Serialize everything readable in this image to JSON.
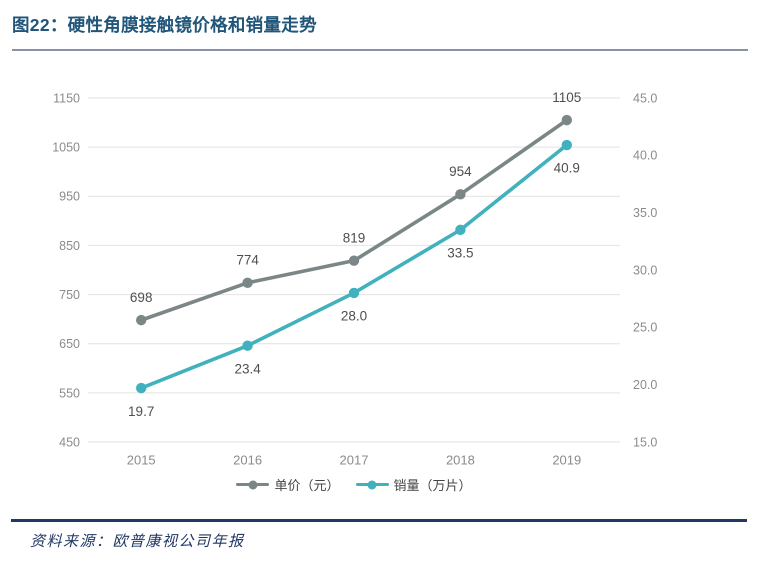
{
  "header": {
    "title": "图22：硬性角膜接触镜价格和销量走势"
  },
  "footer": {
    "source": "资料来源：欧普康视公司年报"
  },
  "theme": {
    "title_color": "#21567A",
    "title_rule_color": "#8494A6",
    "footer_rule_color": "#1F3864",
    "source_color": "#1F3864",
    "gridline_color": "#E2E2E2",
    "axis_label_color": "#8B8B8B",
    "data_label_color": "#4F4F4F",
    "legend_text_color": "#454545",
    "background_color": "#FFFFFF"
  },
  "chart_data": {
    "type": "line",
    "title": "硬性角膜接触镜价格和销量走势",
    "categories": [
      "2015",
      "2016",
      "2017",
      "2018",
      "2019"
    ],
    "series": [
      {
        "name": "单价（元）",
        "axis": "left",
        "color": "#7B8687",
        "values": [
          698,
          774,
          819,
          954,
          1105
        ],
        "labels": [
          "698",
          "774",
          "819",
          "954",
          "1105"
        ],
        "label_position": "above"
      },
      {
        "name": "销量（万片）",
        "axis": "right",
        "color": "#40B1BD",
        "values": [
          19.7,
          23.4,
          28.0,
          33.5,
          40.9
        ],
        "labels": [
          "19.7",
          "23.4",
          "28.0",
          "33.5",
          "40.9"
        ],
        "label_position": "below"
      }
    ],
    "left_axis": {
      "min": 450,
      "max": 1150,
      "step": 100,
      "ticks": [
        "450",
        "550",
        "650",
        "750",
        "850",
        "950",
        "1050",
        "1150"
      ]
    },
    "right_axis": {
      "min": 15,
      "max": 45,
      "step": 5,
      "ticks": [
        "15.0",
        "20.0",
        "25.0",
        "30.0",
        "35.0",
        "40.0",
        "45.0"
      ]
    },
    "grid": "horizontal-only",
    "legend_position": "bottom"
  }
}
